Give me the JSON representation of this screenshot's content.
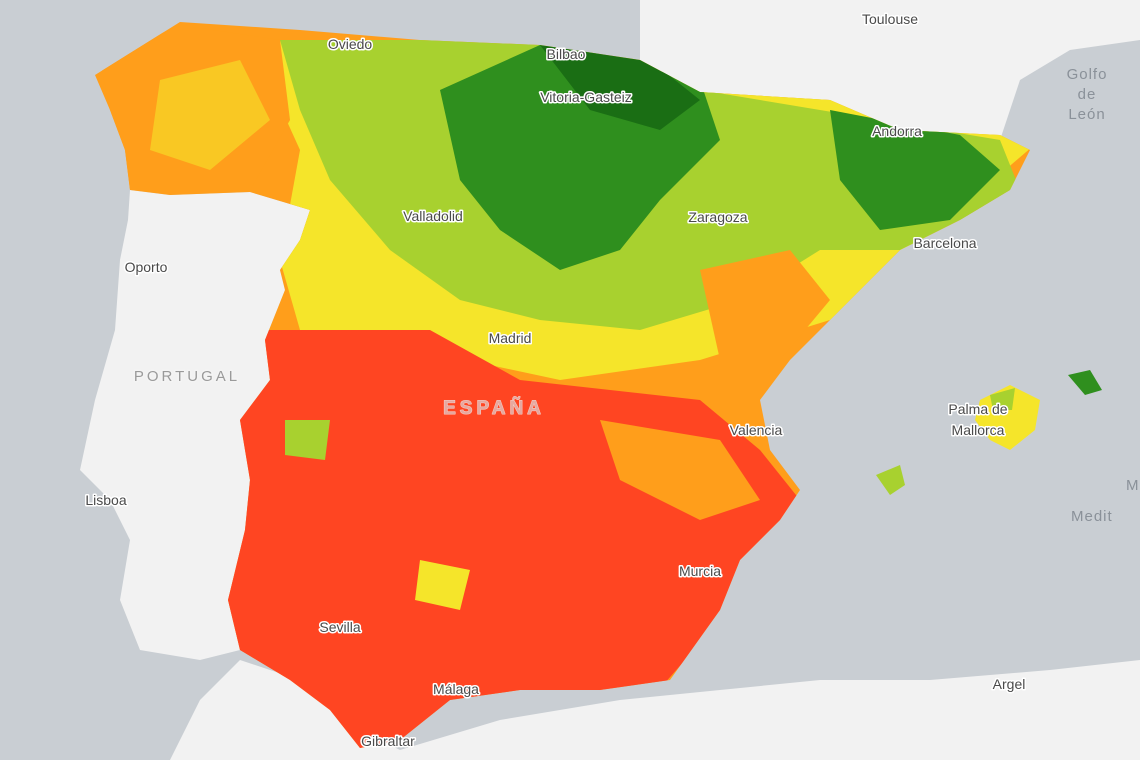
{
  "map": {
    "labels": [
      {
        "text": "Toulouse"
      },
      {
        "text": "Golfo"
      },
      {
        "text": "de"
      },
      {
        "text": "León"
      },
      {
        "text": "Oviedo"
      },
      {
        "text": "Bilbao"
      },
      {
        "text": "Vitoria-Gasteiz"
      },
      {
        "text": "Andorra"
      },
      {
        "text": "Valladolid"
      },
      {
        "text": "Zaragoza"
      },
      {
        "text": "Barcelona"
      },
      {
        "text": "Oporto"
      },
      {
        "text": "PORTUGAL"
      },
      {
        "text": "Madrid"
      },
      {
        "text": "ESPAÑA"
      },
      {
        "text": "Valencia"
      },
      {
        "text": "Palma de"
      },
      {
        "text": "Mallorca"
      },
      {
        "text": "Lisboa"
      },
      {
        "text": "Murcia"
      },
      {
        "text": "Sevilla"
      },
      {
        "text": "Málaga"
      },
      {
        "text": "Gibraltar"
      },
      {
        "text": "Argel"
      },
      {
        "text": "M"
      },
      {
        "text": "Medit"
      }
    ]
  }
}
